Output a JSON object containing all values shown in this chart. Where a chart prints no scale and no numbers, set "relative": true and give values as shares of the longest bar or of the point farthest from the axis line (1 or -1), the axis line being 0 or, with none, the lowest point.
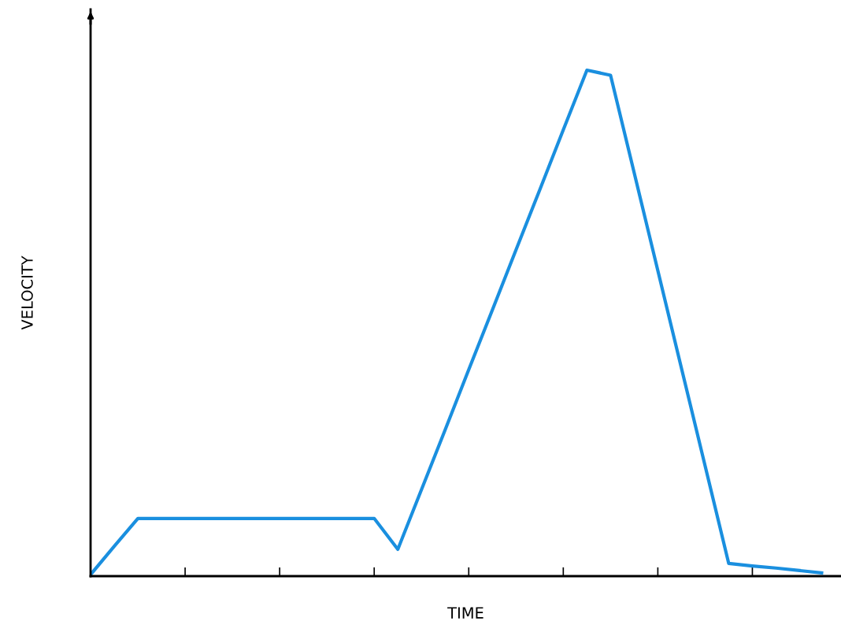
{
  "chart_data": {
    "type": "line",
    "relative": true,
    "xlabel": "TIME",
    "ylabel": "VELOCITY",
    "tick_labels": false,
    "grid": false,
    "legend": false,
    "marker": "none",
    "line_style": "solid",
    "categories": [
      null,
      null,
      null,
      null,
      null,
      null,
      null,
      null,
      null,
      null,
      null,
      null,
      null,
      null,
      null,
      null,
      null,
      null,
      null,
      null,
      null,
      null,
      null,
      null,
      null,
      null,
      null,
      null,
      null,
      null,
      null,
      null
    ],
    "series": [
      {
        "color": "#1a8fdf",
        "values": [
          0.003,
          0.059,
          0.114,
          0.114,
          0.114,
          0.114,
          0.114,
          0.114,
          0.114,
          0.114,
          0.114,
          0.114,
          0.114,
          0.053,
          0.171,
          0.289,
          0.408,
          0.526,
          0.645,
          0.763,
          0.882,
          1,
          0.99,
          0.797,
          0.604,
          0.411,
          0.218,
          0.025,
          0.02,
          0.016,
          0.011,
          0.006
        ]
      }
    ]
  }
}
